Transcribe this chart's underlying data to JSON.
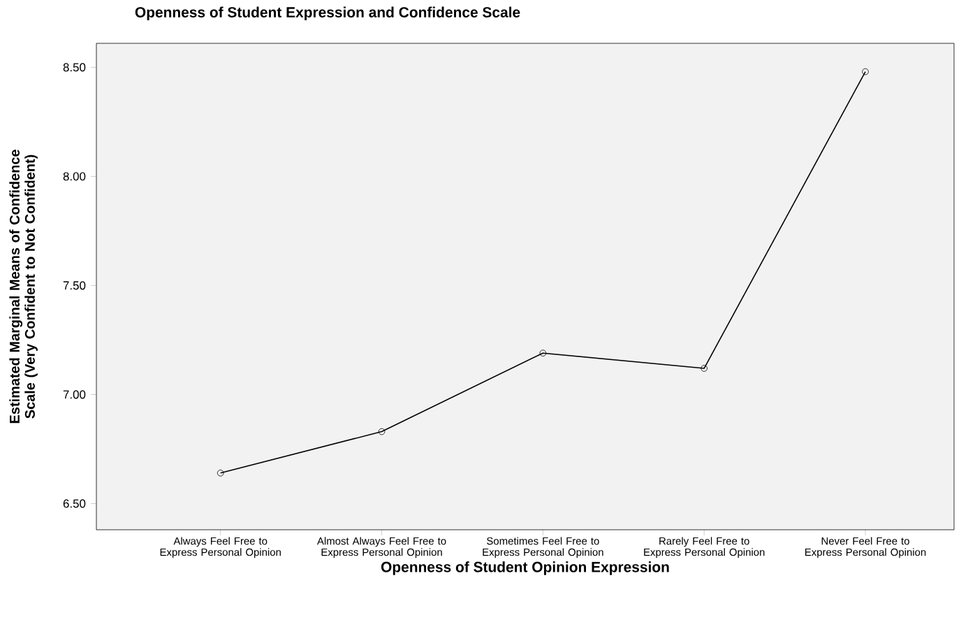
{
  "chart_data": {
    "type": "line",
    "title": "Openness of Student Expression and Confidence Scale",
    "xlabel": "Openness of Student Opinion Expression",
    "ylabel": "Estimated Marginal Means of Confidence Scale (Very Confident to Not Confident)",
    "categories": [
      "Always Feel Free to Express Personal Opinion",
      "Almost Always Feel Free to Express Personal Opinion",
      "Sometimes Feel Free to Express Personal Opinion",
      "Rarely Feel Free to Express Personal Opinion",
      "Never Feel Free to Express Personal Opinion"
    ],
    "values": [
      6.64,
      6.83,
      7.19,
      7.12,
      8.48
    ],
    "color": "#000000",
    "ylim": [
      6.38,
      8.61
    ],
    "yticks": [
      {
        "value": 6.5,
        "label": "6.50"
      },
      {
        "value": 7.0,
        "label": "7.00"
      },
      {
        "value": 7.5,
        "label": "7.50"
      },
      {
        "value": 8.0,
        "label": "8.00"
      },
      {
        "value": 8.5,
        "label": "8.50"
      }
    ],
    "marker": "circle"
  }
}
